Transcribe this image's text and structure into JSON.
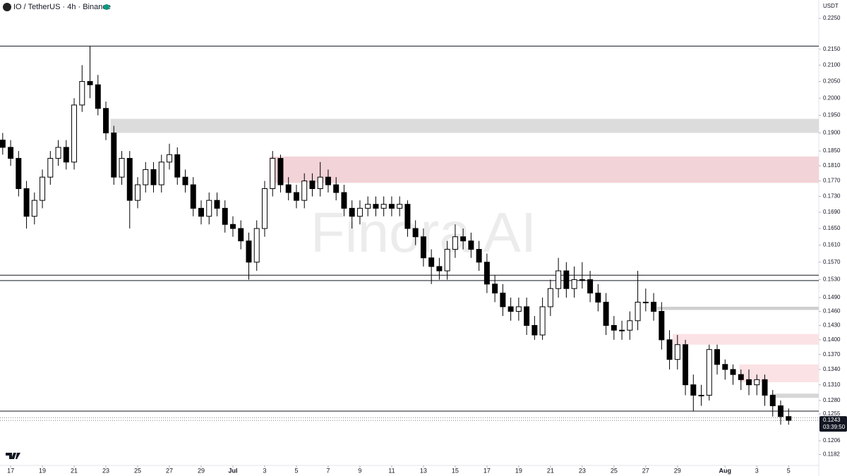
{
  "header": {
    "symbol": "IO / TetherUS · 4h · Binance"
  },
  "chart_data": {
    "type": "candlestick",
    "currency": "USDT",
    "watermark": "Finora AI",
    "log_scale": true,
    "up_color": "#ffffff",
    "down_color": "#000000",
    "wick_color": "#000000",
    "xlim": [
      0.33,
      51.9
    ],
    "ylim": [
      0.1163,
      0.2312
    ],
    "xticks": [
      {
        "value": 1,
        "label": "17"
      },
      {
        "value": 3,
        "label": "19"
      },
      {
        "value": 5,
        "label": "21"
      },
      {
        "value": 7,
        "label": "23"
      },
      {
        "value": 9,
        "label": "25"
      },
      {
        "value": 11,
        "label": "27"
      },
      {
        "value": 13,
        "label": "29"
      },
      {
        "value": 15,
        "label": "Jul"
      },
      {
        "value": 17,
        "label": "3"
      },
      {
        "value": 19,
        "label": "5"
      },
      {
        "value": 21,
        "label": "7"
      },
      {
        "value": 23,
        "label": "9"
      },
      {
        "value": 25,
        "label": "11"
      },
      {
        "value": 27,
        "label": "13"
      },
      {
        "value": 29,
        "label": "15"
      },
      {
        "value": 31,
        "label": "17"
      },
      {
        "value": 33,
        "label": "19"
      },
      {
        "value": 35,
        "label": "21"
      },
      {
        "value": 37,
        "label": "23"
      },
      {
        "value": 39,
        "label": "25"
      },
      {
        "value": 41,
        "label": "27"
      },
      {
        "value": 43,
        "label": "29"
      },
      {
        "value": 46,
        "label": "Aug"
      },
      {
        "value": 48,
        "label": "3"
      },
      {
        "value": 50,
        "label": "5"
      }
    ],
    "yticks": [
      {
        "value": 0.225,
        "label": "0.2250"
      },
      {
        "value": 0.215,
        "label": "0.2150"
      },
      {
        "value": 0.21,
        "label": "0.2100"
      },
      {
        "value": 0.205,
        "label": "0.2050"
      },
      {
        "value": 0.2,
        "label": "0.2000"
      },
      {
        "value": 0.195,
        "label": "0.1950"
      },
      {
        "value": 0.19,
        "label": "0.1900"
      },
      {
        "value": 0.185,
        "label": "0.1850"
      },
      {
        "value": 0.181,
        "label": "0.1810"
      },
      {
        "value": 0.177,
        "label": "0.1770"
      },
      {
        "value": 0.173,
        "label": "0.1730"
      },
      {
        "value": 0.169,
        "label": "0.1690"
      },
      {
        "value": 0.165,
        "label": "0.1650"
      },
      {
        "value": 0.161,
        "label": "0.1610"
      },
      {
        "value": 0.157,
        "label": "0.1570"
      },
      {
        "value": 0.153,
        "label": "0.1530"
      },
      {
        "value": 0.149,
        "label": "0.1490"
      },
      {
        "value": 0.146,
        "label": "0.1460"
      },
      {
        "value": 0.143,
        "label": "0.1430"
      },
      {
        "value": 0.14,
        "label": "0.1400"
      },
      {
        "value": 0.137,
        "label": "0.1370"
      },
      {
        "value": 0.134,
        "label": "0.1340"
      },
      {
        "value": 0.131,
        "label": "0.1310"
      },
      {
        "value": 0.128,
        "label": "0.1280"
      },
      0.1255,
      0.1206,
      0.1182
    ],
    "x": [
      0.5,
      1,
      1.5,
      2,
      2.5,
      3,
      3.5,
      4,
      4.5,
      5,
      5.5,
      6,
      6.5,
      7,
      7.5,
      8,
      8.5,
      9,
      9.5,
      10,
      10.5,
      11,
      11.5,
      12,
      12.5,
      13,
      13.5,
      14,
      14.5,
      15,
      15.5,
      16,
      16.5,
      17,
      17.5,
      18,
      18.5,
      19,
      19.5,
      20,
      20.5,
      21,
      21.5,
      22,
      22.5,
      23,
      23.5,
      24,
      24.5,
      25,
      25.5,
      26,
      26.5,
      27,
      27.5,
      28,
      28.5,
      29,
      29.5,
      30,
      30.5,
      31,
      31.5,
      32,
      32.5,
      33,
      33.5,
      34,
      34.5,
      35,
      35.5,
      36,
      36.5,
      37,
      37.5,
      38,
      38.5,
      39,
      39.5,
      40,
      40.5,
      41,
      41.5,
      42,
      42.5,
      43,
      43.5,
      44,
      44.5,
      45,
      45.5,
      46,
      46.5,
      47,
      47.5,
      48,
      48.5,
      49,
      49.5,
      50
    ],
    "open": [
      0.188,
      0.186,
      0.183,
      0.175,
      0.168,
      0.172,
      0.178,
      0.183,
      0.186,
      0.182,
      0.198,
      0.205,
      0.204,
      0.197,
      0.19,
      0.178,
      0.183,
      0.172,
      0.176,
      0.18,
      0.176,
      0.182,
      0.184,
      0.178,
      0.176,
      0.17,
      0.168,
      0.172,
      0.17,
      0.166,
      0.165,
      0.162,
      0.157,
      0.165,
      0.175,
      0.183,
      0.176,
      0.174,
      0.172,
      0.177,
      0.175,
      0.178,
      0.176,
      0.174,
      0.17,
      0.168,
      0.17,
      0.171,
      0.17,
      0.171,
      0.17,
      0.171,
      0.165,
      0.163,
      0.158,
      0.156,
      0.155,
      0.16,
      0.163,
      0.162,
      0.16,
      0.157,
      0.152,
      0.15,
      0.147,
      0.146,
      0.147,
      0.143,
      0.141,
      0.147,
      0.151,
      0.155,
      0.151,
      0.153,
      0.153,
      0.15,
      0.148,
      0.143,
      0.142,
      0.142,
      0.144,
      0.148,
      0.148,
      0.146,
      0.14,
      0.136,
      0.139,
      0.131,
      0.129,
      0.129,
      0.138,
      0.135,
      0.134,
      0.133,
      0.132,
      0.131,
      0.132,
      0.129,
      0.127,
      0.125
    ],
    "high": [
      0.19,
      0.188,
      0.185,
      0.177,
      0.174,
      0.18,
      0.185,
      0.188,
      0.188,
      0.2,
      0.21,
      0.216,
      0.207,
      0.199,
      0.192,
      0.185,
      0.185,
      0.178,
      0.182,
      0.182,
      0.184,
      0.187,
      0.186,
      0.18,
      0.178,
      0.172,
      0.174,
      0.174,
      0.172,
      0.168,
      0.167,
      0.164,
      0.167,
      0.177,
      0.185,
      0.184,
      0.178,
      0.176,
      0.179,
      0.179,
      0.182,
      0.18,
      0.178,
      0.176,
      0.172,
      0.172,
      0.173,
      0.173,
      0.173,
      0.173,
      0.173,
      0.172,
      0.167,
      0.165,
      0.16,
      0.158,
      0.162,
      0.166,
      0.165,
      0.164,
      0.162,
      0.159,
      0.154,
      0.152,
      0.149,
      0.149,
      0.149,
      0.145,
      0.149,
      0.153,
      0.158,
      0.157,
      0.156,
      0.157,
      0.155,
      0.152,
      0.15,
      0.145,
      0.144,
      0.146,
      0.155,
      0.151,
      0.15,
      0.148,
      0.142,
      0.141,
      0.14,
      0.133,
      0.131,
      0.139,
      0.139,
      0.136,
      0.135,
      0.134,
      0.134,
      0.133,
      0.133,
      0.13,
      0.128,
      0.1265
    ],
    "low": [
      0.184,
      0.181,
      0.173,
      0.165,
      0.166,
      0.17,
      0.176,
      0.181,
      0.18,
      0.18,
      0.196,
      0.2,
      0.195,
      0.188,
      0.176,
      0.176,
      0.165,
      0.17,
      0.174,
      0.174,
      0.174,
      0.18,
      0.176,
      0.174,
      0.168,
      0.166,
      0.166,
      0.168,
      0.164,
      0.163,
      0.16,
      0.153,
      0.155,
      0.163,
      0.173,
      0.174,
      0.172,
      0.17,
      0.17,
      0.173,
      0.173,
      0.174,
      0.172,
      0.168,
      0.165,
      0.166,
      0.168,
      0.168,
      0.168,
      0.168,
      0.168,
      0.163,
      0.161,
      0.156,
      0.152,
      0.153,
      0.153,
      0.158,
      0.16,
      0.158,
      0.155,
      0.15,
      0.148,
      0.145,
      0.144,
      0.144,
      0.141,
      0.14,
      0.14,
      0.145,
      0.149,
      0.149,
      0.149,
      0.151,
      0.148,
      0.146,
      0.141,
      0.14,
      0.14,
      0.14,
      0.142,
      0.146,
      0.144,
      0.138,
      0.134,
      0.134,
      0.129,
      0.126,
      0.127,
      0.128,
      0.133,
      0.132,
      0.131,
      0.13,
      0.129,
      0.129,
      0.127,
      0.125,
      0.1235,
      0.1235
    ],
    "close": [
      0.186,
      0.183,
      0.175,
      0.168,
      0.172,
      0.178,
      0.183,
      0.186,
      0.182,
      0.198,
      0.205,
      0.204,
      0.197,
      0.19,
      0.178,
      0.183,
      0.172,
      0.176,
      0.18,
      0.176,
      0.182,
      0.184,
      0.178,
      0.176,
      0.17,
      0.168,
      0.172,
      0.17,
      0.166,
      0.165,
      0.162,
      0.157,
      0.165,
      0.175,
      0.183,
      0.176,
      0.174,
      0.172,
      0.177,
      0.175,
      0.178,
      0.176,
      0.174,
      0.17,
      0.168,
      0.17,
      0.171,
      0.17,
      0.171,
      0.17,
      0.171,
      0.165,
      0.163,
      0.158,
      0.156,
      0.155,
      0.16,
      0.163,
      0.162,
      0.16,
      0.157,
      0.152,
      0.15,
      0.147,
      0.146,
      0.147,
      0.143,
      0.141,
      0.147,
      0.151,
      0.155,
      0.151,
      0.153,
      0.153,
      0.15,
      0.148,
      0.143,
      0.142,
      0.142,
      0.144,
      0.148,
      0.148,
      0.146,
      0.14,
      0.136,
      0.139,
      0.131,
      0.129,
      0.129,
      0.138,
      0.135,
      0.134,
      0.133,
      0.132,
      0.131,
      0.132,
      0.129,
      0.127,
      0.125,
      0.1243
    ],
    "zones": [
      {
        "x0": 7.3,
        "y": [
          0.19,
          0.194
        ],
        "color": "#dcdcdc"
      },
      {
        "x0": 17.3,
        "y": [
          0.1765,
          0.1835
        ],
        "color": "#f2d3d7"
      },
      {
        "x0": 41.7,
        "y": [
          0.1463,
          0.147
        ],
        "color": "#cfcfcf"
      },
      {
        "x0": 42.7,
        "y": [
          0.139,
          0.1412
        ],
        "color": "#fbe2e4"
      },
      {
        "x0": 46.9,
        "y": [
          0.1315,
          0.135
        ],
        "color": "#fbe2e4"
      },
      {
        "x0": 48.9,
        "y": [
          0.1285,
          0.1293
        ],
        "color": "#d6d6d6"
      }
    ],
    "hlines": [
      0.216,
      0.154,
      0.1528,
      0.126
    ],
    "dotted_lines": [
      0.1248,
      0.1243
    ],
    "last_price": 0.1243,
    "countdown": "03:39:50"
  }
}
